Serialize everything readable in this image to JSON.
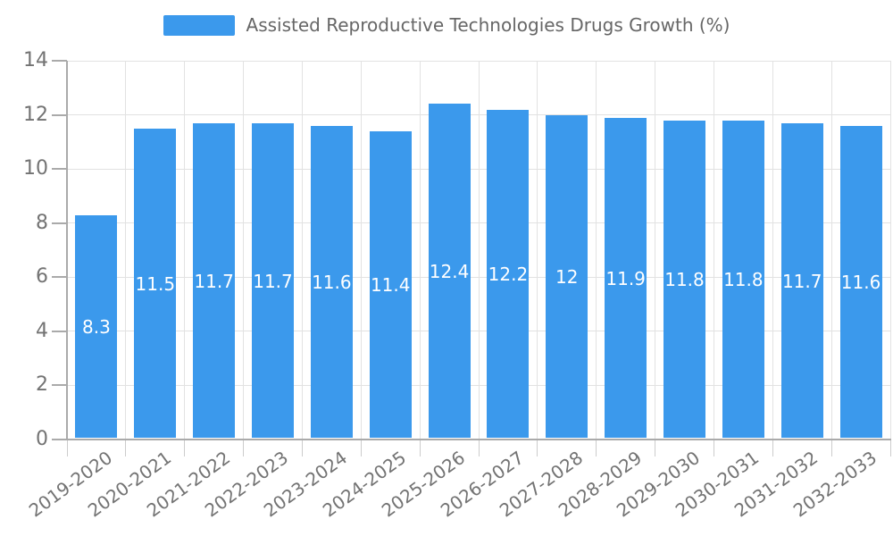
{
  "legend": {
    "label": "Assisted Reproductive Technologies Drugs Growth (%)"
  },
  "colors": {
    "bar": "#3b99ec",
    "grid": "#e2e2e2",
    "axis": "#aaaaaa",
    "x_tick": "#cccccc",
    "label": "#737373",
    "title": "#666666",
    "value_label": "#ffffff"
  },
  "chart_data": {
    "type": "bar",
    "title": "Assisted Reproductive Technologies Drugs Growth (%)",
    "categories": [
      "2019-2020",
      "2020-2021",
      "2021-2022",
      "2022-2023",
      "2023-2024",
      "2024-2025",
      "2025-2026",
      "2026-2027",
      "2027-2028",
      "2028-2029",
      "2029-2030",
      "2030-2031",
      "2031-2032",
      "2032-2033"
    ],
    "values": [
      8.3,
      11.5,
      11.7,
      11.7,
      11.6,
      11.4,
      12.4,
      12.2,
      12,
      11.9,
      11.8,
      11.8,
      11.7,
      11.6
    ],
    "value_labels": [
      "8.3",
      "11.5",
      "11.7",
      "11.7",
      "11.6",
      "11.4",
      "12.4",
      "12.2",
      "12",
      "11.9",
      "11.8",
      "11.8",
      "11.7",
      "11.6"
    ],
    "xlabel": "",
    "ylabel": "",
    "ylim": [
      0,
      14
    ],
    "ytick_step": 2,
    "grid": true,
    "legend_position": "top",
    "bar_color": "#3b99ec"
  }
}
